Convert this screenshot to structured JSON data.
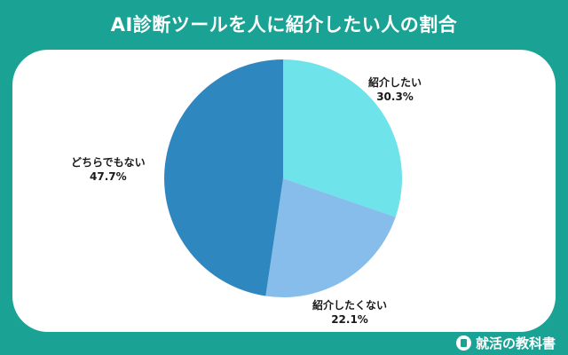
{
  "title": "AI診断ツールを人に紹介したい人の割合",
  "brand": {
    "name": "就活の教科書",
    "icon": "book-icon"
  },
  "chart_data": {
    "type": "pie",
    "title": "AI診断ツールを人に紹介したい人の割合",
    "slices": [
      {
        "label": "紹介したい",
        "value": 30.3,
        "value_label": "30.3%",
        "color": "#6ee3ea"
      },
      {
        "label": "紹介したくない",
        "value": 22.1,
        "value_label": "22.1%",
        "color": "#86bdea"
      },
      {
        "label": "どちらでもない",
        "value": 47.7,
        "value_label": "47.7%",
        "color": "#2f87bf"
      }
    ],
    "start": "top",
    "direction": "clockwise",
    "legend": "none"
  }
}
